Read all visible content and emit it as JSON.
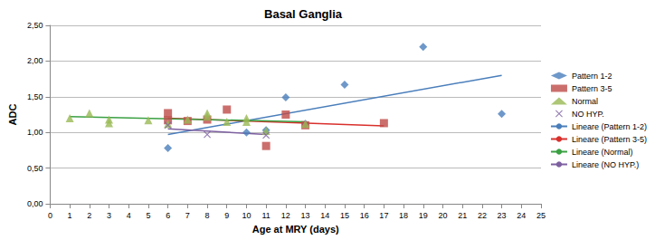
{
  "chart_data": {
    "type": "scatter",
    "title": "Basal Ganglia",
    "x_label": "Age at MRY (days)",
    "y_label": "ADC",
    "xlim": [
      0,
      25
    ],
    "xticks": [
      0,
      1,
      2,
      3,
      4,
      5,
      6,
      7,
      8,
      9,
      10,
      11,
      12,
      13,
      14,
      15,
      16,
      17,
      18,
      19,
      20,
      21,
      22,
      23,
      24,
      25
    ],
    "ylim": [
      0,
      2.5
    ],
    "yticks": [
      {
        "value": 0,
        "label": "0,00"
      },
      {
        "value": 0.5,
        "label": "0,50"
      },
      {
        "value": 1,
        "label": "1,00"
      },
      {
        "value": 1.5,
        "label": "1,50"
      },
      {
        "value": 2,
        "label": "2,00"
      },
      {
        "value": 2.5,
        "label": "2,50"
      }
    ],
    "grid": true,
    "legend": "right",
    "series": [
      {
        "name": "Pattern 1-2",
        "type": "scatter",
        "marker": "diamond",
        "color": "#4a7ebb",
        "x": [
          6,
          10,
          11,
          12,
          13,
          15,
          19,
          23
        ],
        "values": [
          0.78,
          1.0,
          1.03,
          1.49,
          1.12,
          1.67,
          2.2,
          1.26
        ]
      },
      {
        "name": "Pattern 3-5",
        "type": "scatter",
        "marker": "square",
        "color": "#be4b48",
        "x": [
          6,
          6,
          7,
          8,
          9,
          11,
          12,
          13,
          17
        ],
        "values": [
          1.27,
          1.17,
          1.16,
          1.18,
          1.32,
          0.81,
          1.25,
          1.1,
          1.13
        ]
      },
      {
        "name": "Normal",
        "type": "scatter",
        "marker": "triangle",
        "color": "#98b954",
        "x": [
          1,
          2,
          3,
          3,
          5,
          6,
          7,
          8,
          8,
          9,
          10,
          10,
          11,
          13
        ],
        "values": [
          1.2,
          1.27,
          1.18,
          1.13,
          1.17,
          1.12,
          1.18,
          1.27,
          1.22,
          1.15,
          1.2,
          1.15,
          1.02,
          1.12
        ]
      },
      {
        "name": "NO HYP.",
        "type": "scatter",
        "marker": "x",
        "color": "#7d60a0",
        "x": [
          6,
          8,
          11
        ],
        "values": [
          1.1,
          0.97,
          0.96
        ]
      },
      {
        "name": "Lineare (Pattern 1-2)",
        "type": "line",
        "line_style": "solid",
        "color": "#4a7ebb",
        "x": [
          6,
          23
        ],
        "values": [
          0.97,
          1.8
        ]
      },
      {
        "name": "Lineare (Pattern 3-5)",
        "type": "line",
        "line_style": "solid",
        "color": "#d9302c",
        "x": [
          6,
          17
        ],
        "values": [
          1.2,
          1.09
        ]
      },
      {
        "name": "Lineare (Normal)",
        "type": "line",
        "line_style": "solid",
        "color": "#3aa043",
        "x": [
          1,
          13
        ],
        "values": [
          1.22,
          1.15
        ]
      },
      {
        "name": "Lineare (NO HYP.)",
        "type": "line",
        "line_style": "solid",
        "color": "#7d60a0",
        "x": [
          6,
          11
        ],
        "values": [
          1.05,
          0.97
        ]
      }
    ]
  }
}
